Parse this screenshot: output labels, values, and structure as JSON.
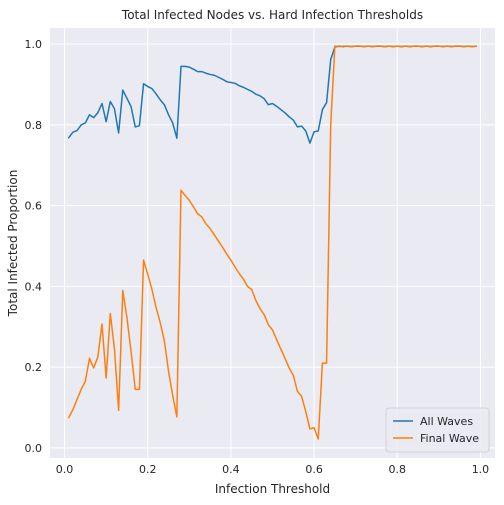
{
  "chart_data": {
    "type": "line",
    "title": "Total Infected Nodes vs. Hard Infection Thresholds",
    "xlabel": "Infection Threshold",
    "ylabel": "Total Infected Proportion",
    "xlim": [
      -0.035,
      1.035
    ],
    "ylim": [
      -0.025,
      1.04
    ],
    "grid": true,
    "background": "#eaeaf2",
    "legend_position": "lower right",
    "xticks": [
      {
        "value": 0.0,
        "label": "0.0"
      },
      {
        "value": 0.2,
        "label": "0.2"
      },
      {
        "value": 0.4,
        "label": "0.4"
      },
      {
        "value": 0.6,
        "label": "0.6"
      },
      {
        "value": 0.8,
        "label": "0.8"
      },
      {
        "value": 1.0,
        "label": "1.0"
      }
    ],
    "yticks": [
      {
        "value": 0.0,
        "label": "0.0"
      },
      {
        "value": 0.2,
        "label": "0.2"
      },
      {
        "value": 0.4,
        "label": "0.4"
      },
      {
        "value": 0.6,
        "label": "0.6"
      },
      {
        "value": 0.8,
        "label": "0.8"
      },
      {
        "value": 1.0,
        "label": "1.0"
      }
    ],
    "series": [
      {
        "name": "All Waves",
        "color": "#1f77b4",
        "x": [
          0.01,
          0.02,
          0.03,
          0.04,
          0.05,
          0.06,
          0.07,
          0.08,
          0.09,
          0.1,
          0.11,
          0.12,
          0.13,
          0.14,
          0.15,
          0.16,
          0.17,
          0.18,
          0.19,
          0.2,
          0.21,
          0.22,
          0.23,
          0.24,
          0.25,
          0.26,
          0.27,
          0.28,
          0.29,
          0.3,
          0.31,
          0.32,
          0.33,
          0.34,
          0.35,
          0.36,
          0.37,
          0.38,
          0.39,
          0.4,
          0.41,
          0.42,
          0.43,
          0.44,
          0.45,
          0.46,
          0.47,
          0.48,
          0.49,
          0.5,
          0.51,
          0.52,
          0.53,
          0.54,
          0.55,
          0.56,
          0.57,
          0.58,
          0.59,
          0.6,
          0.61,
          0.62,
          0.63,
          0.64,
          0.65,
          0.66,
          0.67,
          0.68,
          0.69,
          0.7,
          0.71,
          0.72,
          0.73,
          0.74,
          0.75,
          0.76,
          0.77,
          0.78,
          0.79,
          0.8,
          0.81,
          0.82,
          0.83,
          0.84,
          0.85,
          0.86,
          0.87,
          0.88,
          0.89,
          0.9,
          0.91,
          0.92,
          0.93,
          0.94,
          0.95,
          0.96,
          0.97,
          0.98,
          0.99
        ],
        "y": [
          0.768,
          0.782,
          0.786,
          0.8,
          0.805,
          0.825,
          0.818,
          0.83,
          0.853,
          0.808,
          0.858,
          0.84,
          0.78,
          0.886,
          0.866,
          0.845,
          0.795,
          0.798,
          0.902,
          0.895,
          0.89,
          0.877,
          0.862,
          0.85,
          0.825,
          0.805,
          0.767,
          0.945,
          0.945,
          0.943,
          0.938,
          0.932,
          0.932,
          0.928,
          0.925,
          0.923,
          0.918,
          0.913,
          0.907,
          0.905,
          0.903,
          0.897,
          0.893,
          0.888,
          0.883,
          0.876,
          0.872,
          0.865,
          0.85,
          0.853,
          0.846,
          0.838,
          0.83,
          0.82,
          0.812,
          0.795,
          0.797,
          0.785,
          0.755,
          0.783,
          0.785,
          0.838,
          0.855,
          0.962,
          0.993,
          0.995,
          0.994,
          0.995,
          0.994,
          0.995,
          0.995,
          0.994,
          0.995,
          0.994,
          0.995,
          0.995,
          0.994,
          0.995,
          0.994,
          0.995,
          0.994,
          0.995,
          0.994,
          0.995,
          0.995,
          0.994,
          0.995,
          0.994,
          0.995,
          0.995,
          0.994,
          0.995,
          0.994,
          0.995,
          0.995,
          0.994,
          0.995,
          0.994,
          0.995
        ]
      },
      {
        "name": "Final Wave",
        "color": "#ff7f0e",
        "x": [
          0.01,
          0.02,
          0.03,
          0.04,
          0.05,
          0.06,
          0.07,
          0.08,
          0.09,
          0.1,
          0.11,
          0.12,
          0.13,
          0.14,
          0.15,
          0.16,
          0.17,
          0.18,
          0.19,
          0.2,
          0.21,
          0.22,
          0.23,
          0.24,
          0.25,
          0.26,
          0.27,
          0.28,
          0.29,
          0.3,
          0.31,
          0.32,
          0.33,
          0.34,
          0.35,
          0.36,
          0.37,
          0.38,
          0.39,
          0.4,
          0.41,
          0.42,
          0.43,
          0.44,
          0.45,
          0.46,
          0.47,
          0.48,
          0.49,
          0.5,
          0.51,
          0.52,
          0.53,
          0.54,
          0.55,
          0.56,
          0.57,
          0.58,
          0.59,
          0.6,
          0.61,
          0.62,
          0.63,
          0.64,
          0.65,
          0.66,
          0.67,
          0.68,
          0.69,
          0.7,
          0.71,
          0.72,
          0.73,
          0.74,
          0.75,
          0.76,
          0.77,
          0.78,
          0.79,
          0.8,
          0.81,
          0.82,
          0.83,
          0.84,
          0.85,
          0.86,
          0.87,
          0.88,
          0.89,
          0.9,
          0.91,
          0.92,
          0.93,
          0.94,
          0.95,
          0.96,
          0.97,
          0.98,
          0.99
        ],
        "y": [
          0.075,
          0.095,
          0.12,
          0.145,
          0.165,
          0.222,
          0.198,
          0.225,
          0.307,
          0.173,
          0.333,
          0.245,
          0.093,
          0.39,
          0.323,
          0.238,
          0.145,
          0.145,
          0.465,
          0.43,
          0.393,
          0.348,
          0.31,
          0.265,
          0.19,
          0.13,
          0.077,
          0.638,
          0.625,
          0.613,
          0.597,
          0.58,
          0.572,
          0.555,
          0.543,
          0.528,
          0.512,
          0.497,
          0.48,
          0.465,
          0.448,
          0.432,
          0.418,
          0.4,
          0.392,
          0.365,
          0.345,
          0.33,
          0.305,
          0.292,
          0.268,
          0.245,
          0.222,
          0.198,
          0.18,
          0.14,
          0.128,
          0.09,
          0.047,
          0.05,
          0.022,
          0.21,
          0.21,
          0.8,
          0.995,
          0.994,
          0.995,
          0.995,
          0.994,
          0.995,
          0.995,
          0.994,
          0.995,
          0.994,
          0.995,
          0.995,
          0.994,
          0.995,
          0.994,
          0.995,
          0.994,
          0.995,
          0.994,
          0.995,
          0.995,
          0.994,
          0.995,
          0.994,
          0.995,
          0.995,
          0.994,
          0.995,
          0.994,
          0.995,
          0.995,
          0.994,
          0.995,
          0.994,
          0.995
        ]
      }
    ]
  }
}
